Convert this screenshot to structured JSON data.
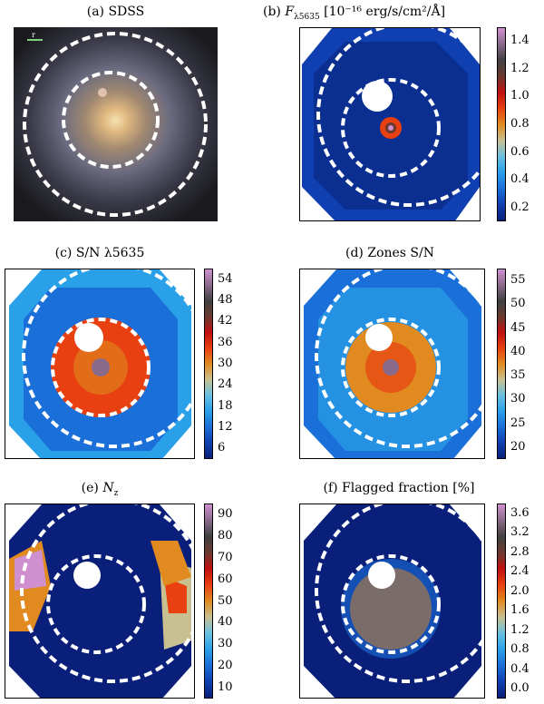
{
  "panels": {
    "a": {
      "title": "(a) SDSS",
      "scalebar_label": "r"
    },
    "b": {
      "title_prefix": "(b) ",
      "title_var": "F",
      "title_sub": "λ5635",
      "title_unit": " [10⁻¹⁶ erg/s/cm²/Å]",
      "ticks": [
        "1.4",
        "1.2",
        "1.0",
        "0.8",
        "0.6",
        "0.4",
        "0.2"
      ]
    },
    "c": {
      "title": "(c) S/N λ5635",
      "ticks": [
        "54",
        "48",
        "42",
        "36",
        "30",
        "24",
        "18",
        "12",
        "6"
      ]
    },
    "d": {
      "title": "(d) Zones S/N",
      "ticks": [
        "55",
        "50",
        "45",
        "40",
        "35",
        "30",
        "25",
        "20"
      ]
    },
    "e": {
      "title_prefix": "(e) ",
      "title_var": "N",
      "title_sub": "z",
      "ticks": [
        "90",
        "80",
        "70",
        "60",
        "50",
        "40",
        "30",
        "20",
        "10"
      ]
    },
    "f": {
      "title": "(f) Flagged fraction [%]",
      "ticks": [
        "3.6",
        "3.2",
        "2.8",
        "2.4",
        "2.0",
        "1.6",
        "1.2",
        "0.8",
        "0.4",
        "0.0"
      ]
    }
  },
  "colors": {
    "cmap": [
      "#0a1f7a",
      "#0f3fb0",
      "#1a6fd8",
      "#2aa0e8",
      "#6ac0e0",
      "#c8c090",
      "#e08a20",
      "#e84010",
      "#c01010",
      "#6a3a30",
      "#404040",
      "#8a6a8a",
      "#d090d0"
    ]
  },
  "chart_data": [
    {
      "type": "image",
      "title": "(a) SDSS"
    },
    {
      "type": "heatmap",
      "title": "(b) F_λ5635 [10^-16 erg/s/cm^2/Å]",
      "colorbar_ticks": [
        0.2,
        0.4,
        0.6,
        0.8,
        1.0,
        1.2,
        1.4
      ]
    },
    {
      "type": "heatmap",
      "title": "(c) S/N λ5635",
      "colorbar_ticks": [
        6,
        12,
        18,
        24,
        30,
        36,
        42,
        48,
        54
      ]
    },
    {
      "type": "heatmap",
      "title": "(d) Zones S/N",
      "colorbar_ticks": [
        20,
        25,
        30,
        35,
        40,
        45,
        50,
        55
      ]
    },
    {
      "type": "heatmap",
      "title": "(e) N_z",
      "colorbar_ticks": [
        10,
        20,
        30,
        40,
        50,
        60,
        70,
        80,
        90
      ]
    },
    {
      "type": "heatmap",
      "title": "(f) Flagged fraction [%]",
      "colorbar_ticks": [
        0.0,
        0.4,
        0.8,
        1.2,
        1.6,
        2.0,
        2.4,
        2.8,
        3.2,
        3.6
      ]
    }
  ]
}
